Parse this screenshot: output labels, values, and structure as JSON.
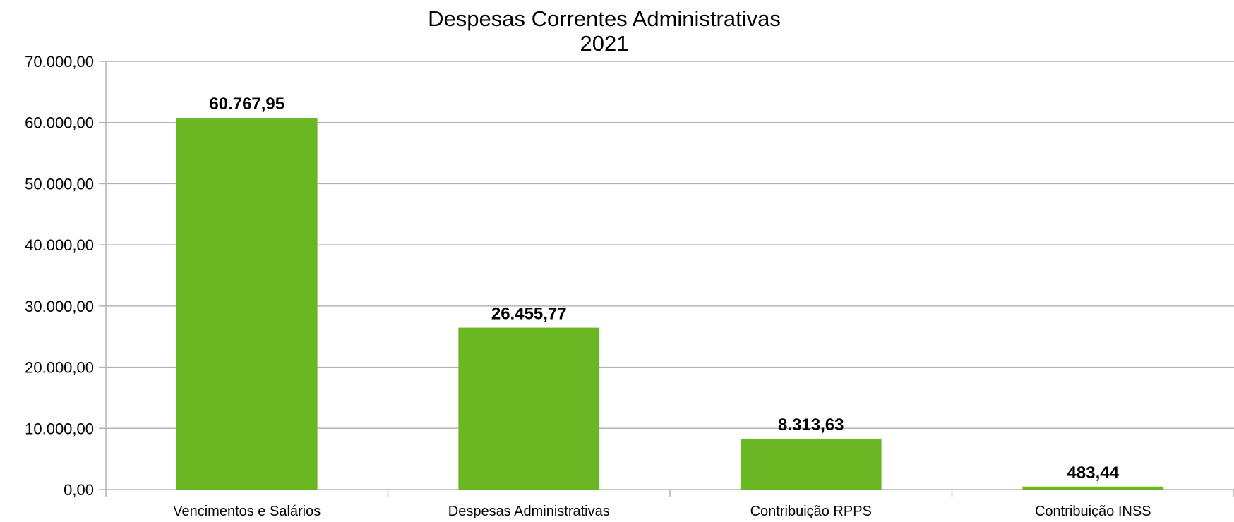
{
  "chart_data": {
    "type": "bar",
    "title": "Despesas Correntes Administrativas",
    "subtitle": "2021",
    "categories": [
      "Vencimentos e Salários",
      "Despesas Administrativas",
      "Contribuição RPPS",
      "Contribuição INSS"
    ],
    "values": [
      60767.95,
      26455.77,
      8313.63,
      483.44
    ],
    "data_labels": [
      "60.767,95",
      "26.455,77",
      "8.313,63",
      "483,44"
    ],
    "y_ticks": [
      {
        "value": 0,
        "label": "0,00"
      },
      {
        "value": 10000,
        "label": "10.000,00"
      },
      {
        "value": 20000,
        "label": "20.000,00"
      },
      {
        "value": 30000,
        "label": "30.000,00"
      },
      {
        "value": 40000,
        "label": "40.000,00"
      },
      {
        "value": 50000,
        "label": "50.000,00"
      },
      {
        "value": 60000,
        "label": "60.000,00"
      },
      {
        "value": 70000,
        "label": "70.000,00"
      }
    ],
    "ylim": [
      0,
      70000
    ],
    "xlabel": "",
    "ylabel": "",
    "grid": true,
    "legend": "none",
    "bar_color": "#6ab723",
    "grid_color": "#b3b3b3"
  }
}
